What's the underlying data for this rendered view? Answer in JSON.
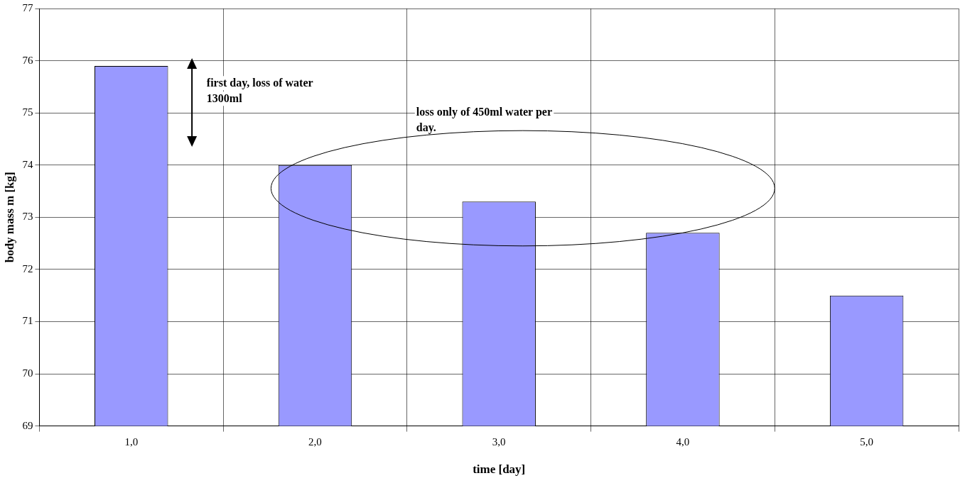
{
  "chart_data": {
    "type": "bar",
    "xlabel": "time [day]",
    "ylabel": "body mass m [kg]",
    "categories": [
      "1,0",
      "2,0",
      "3,0",
      "4,0",
      "5,0"
    ],
    "values": [
      75.9,
      74.0,
      73.3,
      72.7,
      71.5
    ],
    "color": "#9999ff",
    "ylim": [
      69,
      77
    ],
    "yticks": [
      69,
      70,
      71,
      72,
      73,
      74,
      75,
      76,
      77
    ],
    "grid": true,
    "annotations": [
      "first day, loss of water 1300ml",
      "loss only of 450ml water per day."
    ]
  }
}
